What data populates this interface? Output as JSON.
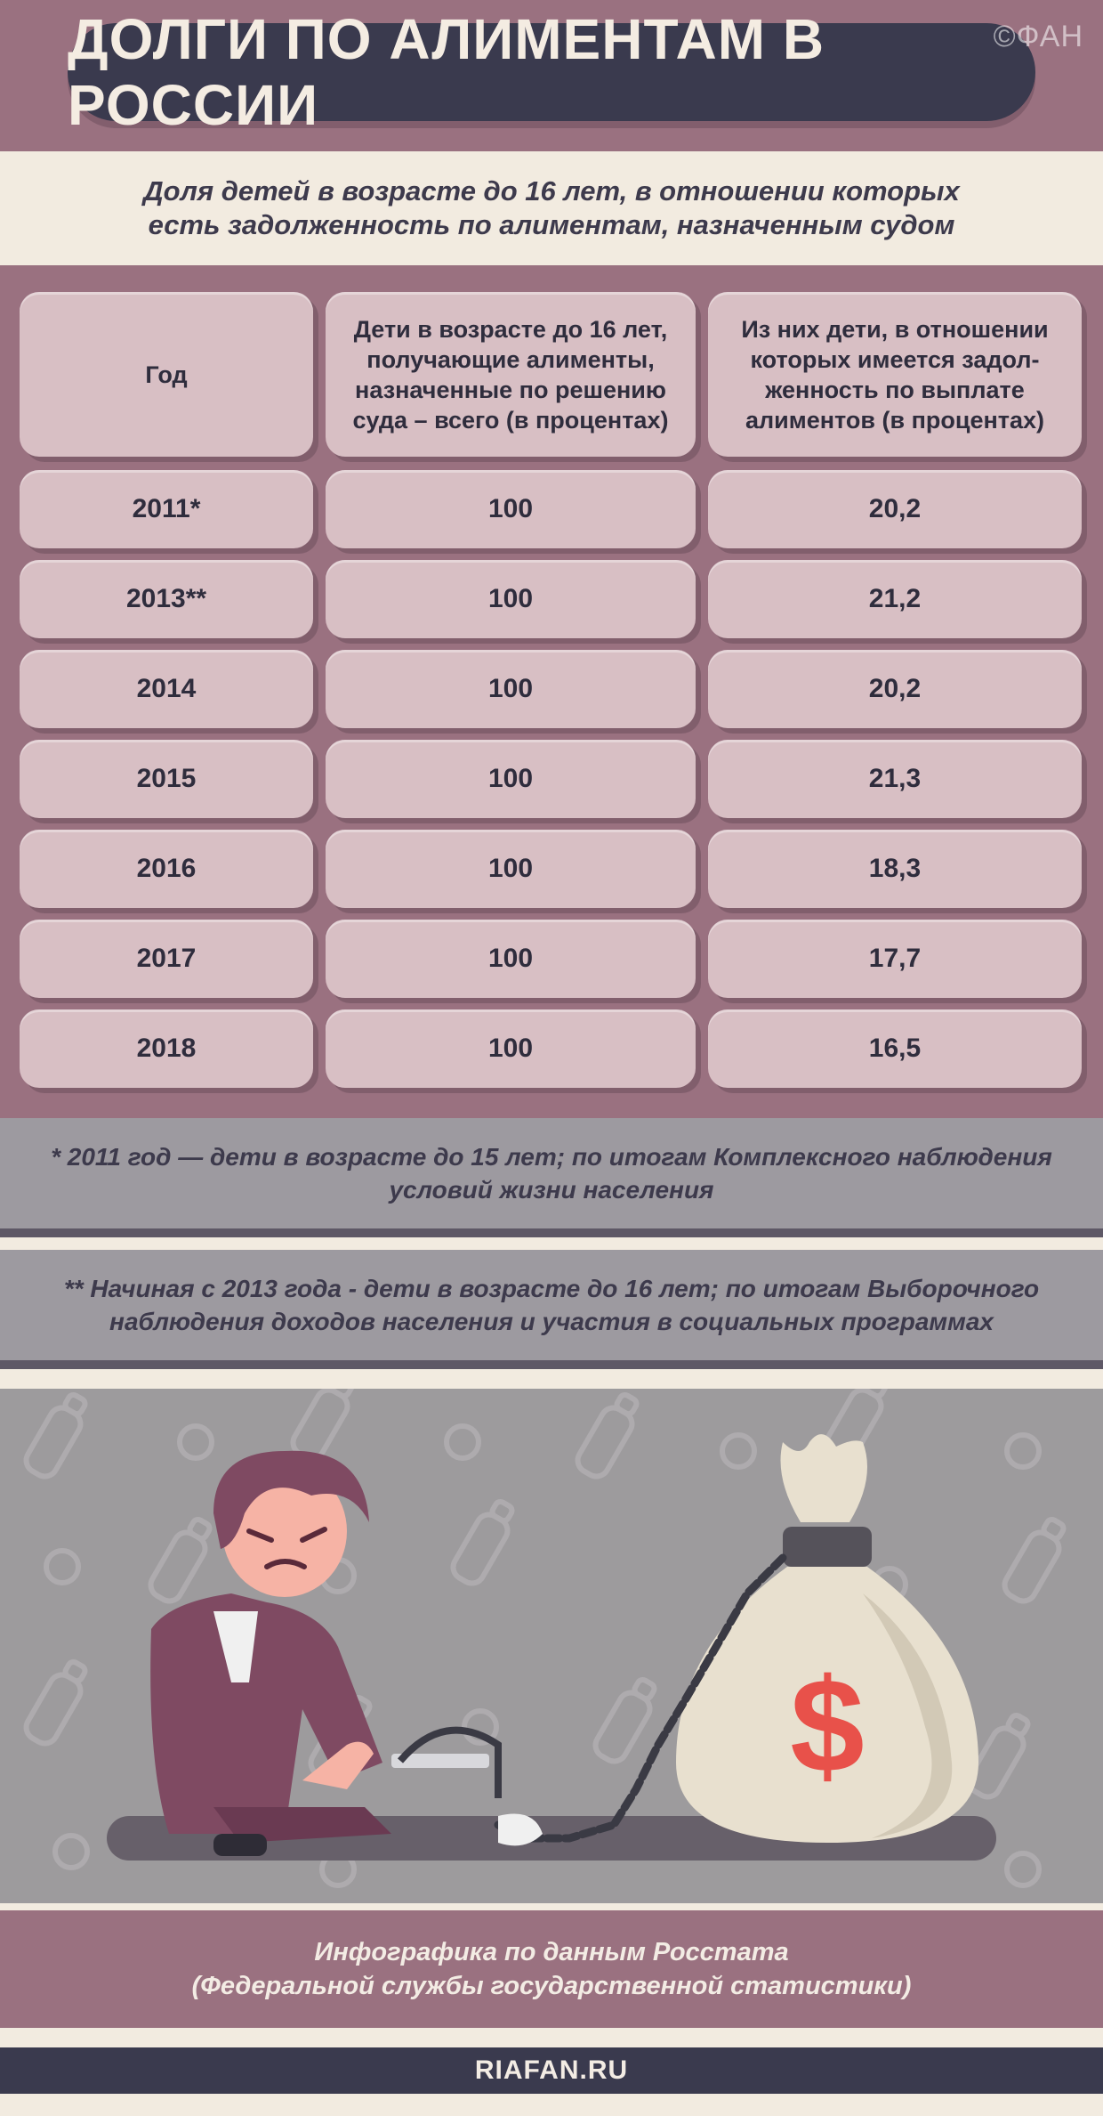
{
  "header": {
    "title": "ДОЛГИ ПО АЛИМЕНТАМ В РОССИИ",
    "watermark": "©ФАН"
  },
  "subtitle": {
    "line1": "Доля детей в возрасте до 16 лет, в отношении которых",
    "line2": "есть задолженность по алиментам, назначенным судом"
  },
  "table": {
    "columns": [
      "Год",
      "Дети в возрасте до 16 лет, получающие алименты, назначенные по решению суда – всего (в процентах)",
      "Из них дети, в отношении которых имеется задол-женность по выплате алиментов (в процентах)"
    ],
    "rows": [
      {
        "year": "2011*",
        "total": "100",
        "debt": "20,2"
      },
      {
        "year": "2013**",
        "total": "100",
        "debt": "21,2"
      },
      {
        "year": "2014",
        "total": "100",
        "debt": "20,2"
      },
      {
        "year": "2015",
        "total": "100",
        "debt": "21,3"
      },
      {
        "year": "2016",
        "total": "100",
        "debt": "18,3"
      },
      {
        "year": "2017",
        "total": "100",
        "debt": "17,7"
      },
      {
        "year": "2018",
        "total": "100",
        "debt": "16,5"
      }
    ]
  },
  "notes": {
    "note1_line1": "* 2011 год — дети в возрасте до 15 лет; по итогам Комплексного наблюдения",
    "note1_line2": "условий жизни населения",
    "note2_line1": "** Начиная с 2013 года - дети в возрасте до 16 лет; по итогам Выборочного",
    "note2_line2": "наблюдения доходов населения и участия в социальных программах"
  },
  "illustration": {
    "money_symbol": "$"
  },
  "footer": {
    "source_line1": "Инфографика по данным Росстата",
    "source_line2": "(Федеральной службы государственной статистики)",
    "site": "RIAFAN.RU"
  },
  "colors": {
    "mauve": "#9a7180",
    "navy": "#3a3a4e",
    "cream": "#f2ebe0",
    "cell": "#d8bfc4",
    "gray": "#9d9b9d",
    "dollar_red": "#e8514a"
  }
}
